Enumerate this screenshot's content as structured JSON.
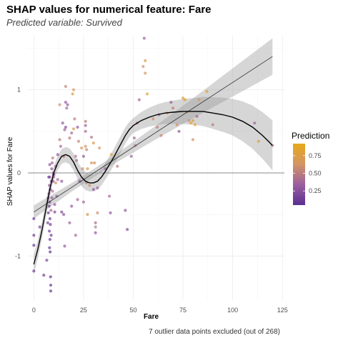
{
  "title": "SHAP values for numerical feature: Fare",
  "subtitle": "Predicted variable: Survived",
  "caption": "7 outlier data points excluded (out of 268)",
  "chart_data": {
    "type": "scatter",
    "xlabel": "Fare",
    "ylabel": "SHAP values for Fare",
    "xlim": [
      -3,
      126
    ],
    "ylim": [
      -1.53,
      1.65
    ],
    "x_ticks": [
      0,
      25,
      50,
      75,
      100,
      125
    ],
    "y_ticks": [
      -1,
      0,
      1
    ],
    "grid": true,
    "reference_line_y": 0,
    "legend": {
      "title": "Prediction",
      "placement": "right",
      "ticks": [
        0.25,
        0.5,
        0.75
      ],
      "range": [
        0.05,
        0.92
      ],
      "colors": [
        "#5b2f91",
        "#9a5fa0",
        "#d49563",
        "#e8a81b"
      ]
    },
    "colors": {
      "smooth_line": "#000000",
      "linear_fit": "#333333",
      "ribbon": "#999999",
      "reference_line": "#888888"
    },
    "points": [
      {
        "x": 0,
        "y": -0.55,
        "c": 0.12
      },
      {
        "x": 0,
        "y": -0.75,
        "c": 0.15
      },
      {
        "x": 0,
        "y": -0.87,
        "c": 0.1
      },
      {
        "x": 0,
        "y": -1.18,
        "c": 0.12
      },
      {
        "x": 3,
        "y": -0.65,
        "c": 0.2
      },
      {
        "x": 5,
        "y": -1.23,
        "c": 0.15
      },
      {
        "x": 6.5,
        "y": -1.05,
        "c": 0.2
      },
      {
        "x": 7,
        "y": -0.6,
        "c": 0.2
      },
      {
        "x": 7.2,
        "y": -0.3,
        "c": 0.3
      },
      {
        "x": 7.3,
        "y": -0.48,
        "c": 0.15
      },
      {
        "x": 7.5,
        "y": -0.05,
        "c": 0.2
      },
      {
        "x": 7.6,
        "y": -0.25,
        "c": 0.35
      },
      {
        "x": 7.7,
        "y": -0.4,
        "c": 0.15
      },
      {
        "x": 7.8,
        "y": -0.15,
        "c": 0.3
      },
      {
        "x": 7.8,
        "y": -0.7,
        "c": 0.15
      },
      {
        "x": 7.9,
        "y": -0.9,
        "c": 0.12
      },
      {
        "x": 7.9,
        "y": -0.05,
        "c": 0.2
      },
      {
        "x": 8,
        "y": 0.1,
        "c": 0.3
      },
      {
        "x": 8,
        "y": -0.35,
        "c": 0.2
      },
      {
        "x": 8.1,
        "y": -0.55,
        "c": 0.15
      },
      {
        "x": 8.1,
        "y": -0.8,
        "c": 0.12
      },
      {
        "x": 8.2,
        "y": -0.95,
        "c": 0.1
      },
      {
        "x": 8.3,
        "y": -0.62,
        "c": 0.14
      },
      {
        "x": 8.3,
        "y": -0.2,
        "c": 0.2
      },
      {
        "x": 8.4,
        "y": -1.25,
        "c": 0.1
      },
      {
        "x": 8.5,
        "y": -1.35,
        "c": 0.1
      },
      {
        "x": 8.5,
        "y": -1.42,
        "c": 0.12
      },
      {
        "x": 8.6,
        "y": -0.45,
        "c": 0.4
      },
      {
        "x": 8.7,
        "y": -0.75,
        "c": 0.15
      },
      {
        "x": 8.8,
        "y": -0.1,
        "c": 0.25
      },
      {
        "x": 9,
        "y": 0.05,
        "c": 0.3
      },
      {
        "x": 9.1,
        "y": -0.3,
        "c": 0.35
      },
      {
        "x": 9.2,
        "y": 0.12,
        "c": 0.35
      },
      {
        "x": 9.4,
        "y": -0.22,
        "c": 0.45
      },
      {
        "x": 9.5,
        "y": 0.18,
        "c": 0.5
      },
      {
        "x": 9.7,
        "y": -0.1,
        "c": 0.3
      },
      {
        "x": 9.8,
        "y": 0.0,
        "c": 0.4
      },
      {
        "x": 10,
        "y": -0.02,
        "c": 0.2
      },
      {
        "x": 10,
        "y": -0.05,
        "c": 0.4
      },
      {
        "x": 10.5,
        "y": -0.38,
        "c": 0.3
      },
      {
        "x": 10.5,
        "y": -0.47,
        "c": 0.2
      },
      {
        "x": 11,
        "y": 0.08,
        "c": 0.35
      },
      {
        "x": 11,
        "y": -0.12,
        "c": 0.6
      },
      {
        "x": 11.5,
        "y": -0.28,
        "c": 0.3
      },
      {
        "x": 12,
        "y": -0.08,
        "c": 0.4
      },
      {
        "x": 12,
        "y": 0.22,
        "c": 0.3
      },
      {
        "x": 13,
        "y": 0.4,
        "c": 0.5
      },
      {
        "x": 13,
        "y": 0.82,
        "c": 0.6
      },
      {
        "x": 13.5,
        "y": 0.32,
        "c": 0.4
      },
      {
        "x": 14,
        "y": -0.1,
        "c": 0.3
      },
      {
        "x": 14,
        "y": -0.47,
        "c": 0.2
      },
      {
        "x": 14.5,
        "y": 0.6,
        "c": 0.3
      },
      {
        "x": 15,
        "y": 0.2,
        "c": 0.5
      },
      {
        "x": 15,
        "y": -0.5,
        "c": 0.3
      },
      {
        "x": 15.5,
        "y": -0.88,
        "c": 0.3
      },
      {
        "x": 15.5,
        "y": 0.52,
        "c": 0.35
      },
      {
        "x": 16,
        "y": 0.85,
        "c": 0.3
      },
      {
        "x": 16,
        "y": 0.55,
        "c": 0.25
      },
      {
        "x": 16,
        "y": 1.04,
        "c": 0.55
      },
      {
        "x": 16.5,
        "y": 0.78,
        "c": 0.4
      },
      {
        "x": 17,
        "y": 0.82,
        "c": 0.3
      },
      {
        "x": 18,
        "y": -0.6,
        "c": 0.35
      },
      {
        "x": 18,
        "y": 0.42,
        "c": 0.5
      },
      {
        "x": 19,
        "y": -0.4,
        "c": 0.3
      },
      {
        "x": 19,
        "y": 0.48,
        "c": 0.4
      },
      {
        "x": 19.5,
        "y": 0.95,
        "c": 0.75
      },
      {
        "x": 20,
        "y": 1.0,
        "c": 0.65
      },
      {
        "x": 20,
        "y": 0.53,
        "c": 0.7
      },
      {
        "x": 20.5,
        "y": 0.65,
        "c": 0.5
      },
      {
        "x": 21,
        "y": 0.2,
        "c": 0.45
      },
      {
        "x": 21,
        "y": -0.75,
        "c": 0.4
      },
      {
        "x": 21.5,
        "y": 0.15,
        "c": 0.4
      },
      {
        "x": 22,
        "y": 0.55,
        "c": 0.3
      },
      {
        "x": 22,
        "y": -0.32,
        "c": 0.4
      },
      {
        "x": 22.5,
        "y": 0.38,
        "c": 0.55
      },
      {
        "x": 23,
        "y": -0.1,
        "c": 0.3
      },
      {
        "x": 24,
        "y": 0.3,
        "c": 0.7
      },
      {
        "x": 24.5,
        "y": 0.05,
        "c": 0.6
      },
      {
        "x": 25,
        "y": 0.2,
        "c": 0.3
      },
      {
        "x": 25,
        "y": -0.35,
        "c": 0.4
      },
      {
        "x": 26,
        "y": 0.62,
        "c": 0.5
      },
      {
        "x": 26,
        "y": 0.57,
        "c": 0.35
      },
      {
        "x": 26,
        "y": 0.5,
        "c": 0.4
      },
      {
        "x": 26,
        "y": 0.32,
        "c": 0.65
      },
      {
        "x": 26.5,
        "y": 0.28,
        "c": 0.55
      },
      {
        "x": 26.5,
        "y": -0.12,
        "c": 0.5
      },
      {
        "x": 27,
        "y": 0.05,
        "c": 0.7
      },
      {
        "x": 27,
        "y": -0.5,
        "c": 0.7
      },
      {
        "x": 28,
        "y": -0.15,
        "c": 0.6
      },
      {
        "x": 29,
        "y": 0.43,
        "c": 0.45
      },
      {
        "x": 29,
        "y": 0.12,
        "c": 0.7
      },
      {
        "x": 30,
        "y": 0.36,
        "c": 0.7
      },
      {
        "x": 30,
        "y": -0.2,
        "c": 0.3
      },
      {
        "x": 30.5,
        "y": 0.12,
        "c": 0.6
      },
      {
        "x": 31,
        "y": -0.65,
        "c": 0.5
      },
      {
        "x": 31,
        "y": -0.6,
        "c": 0.4
      },
      {
        "x": 31,
        "y": -0.72,
        "c": 0.3
      },
      {
        "x": 32,
        "y": -0.18,
        "c": 0.35
      },
      {
        "x": 32,
        "y": -0.48,
        "c": 0.6
      },
      {
        "x": 33,
        "y": 0.3,
        "c": 0.65
      },
      {
        "x": 36,
        "y": 0.05,
        "c": 0.35
      },
      {
        "x": 38,
        "y": -0.28,
        "c": 0.4
      },
      {
        "x": 38.5,
        "y": -0.48,
        "c": 0.3
      },
      {
        "x": 39,
        "y": 0.22,
        "c": 0.8
      },
      {
        "x": 42,
        "y": 0.08,
        "c": 0.5
      },
      {
        "x": 46,
        "y": -0.45,
        "c": 0.3
      },
      {
        "x": 47,
        "y": -0.68,
        "c": 0.25
      },
      {
        "x": 49,
        "y": 0.2,
        "c": 0.35
      },
      {
        "x": 50.5,
        "y": 0.42,
        "c": 0.4
      },
      {
        "x": 51,
        "y": 0.33,
        "c": 0.5
      },
      {
        "x": 52,
        "y": 0.6,
        "c": 0.45
      },
      {
        "x": 53,
        "y": 0.88,
        "c": 0.4
      },
      {
        "x": 55,
        "y": 1.28,
        "c": 0.6
      },
      {
        "x": 55.5,
        "y": 1.62,
        "c": 0.35
      },
      {
        "x": 56,
        "y": 1.35,
        "c": 0.7
      },
      {
        "x": 56,
        "y": 1.2,
        "c": 0.65
      },
      {
        "x": 57,
        "y": 0.95,
        "c": 0.8
      },
      {
        "x": 60,
        "y": 0.65,
        "c": 0.6
      },
      {
        "x": 62,
        "y": 0.55,
        "c": 0.5
      },
      {
        "x": 63,
        "y": 0.7,
        "c": 0.4
      },
      {
        "x": 64,
        "y": 0.45,
        "c": 0.55
      },
      {
        "x": 67,
        "y": 0.72,
        "c": 0.7
      },
      {
        "x": 69,
        "y": 0.85,
        "c": 0.35
      },
      {
        "x": 70,
        "y": 0.78,
        "c": 0.5
      },
      {
        "x": 72,
        "y": 0.58,
        "c": 0.6
      },
      {
        "x": 73,
        "y": 0.5,
        "c": 0.3
      },
      {
        "x": 75,
        "y": 0.9,
        "c": 0.75
      },
      {
        "x": 76,
        "y": 0.88,
        "c": 0.85
      },
      {
        "x": 77,
        "y": 0.73,
        "c": 0.75
      },
      {
        "x": 78,
        "y": 0.63,
        "c": 0.6
      },
      {
        "x": 79,
        "y": 0.6,
        "c": 0.85
      },
      {
        "x": 80,
        "y": 0.63,
        "c": 0.75
      },
      {
        "x": 80,
        "y": 0.4,
        "c": 0.6
      },
      {
        "x": 81,
        "y": 0.58,
        "c": 0.85
      },
      {
        "x": 82,
        "y": 0.68,
        "c": 0.4
      },
      {
        "x": 83,
        "y": 0.88,
        "c": 0.7
      },
      {
        "x": 87,
        "y": 0.98,
        "c": 0.8
      },
      {
        "x": 90,
        "y": 0.58,
        "c": 0.5
      },
      {
        "x": 111,
        "y": 0.6,
        "c": 0.35
      },
      {
        "x": 113,
        "y": 0.38,
        "c": 0.8
      },
      {
        "x": 120,
        "y": 0.33,
        "c": 0.5
      }
    ],
    "smooth_curve": [
      [
        0,
        -1.1
      ],
      [
        2,
        -0.92
      ],
      [
        4,
        -0.7
      ],
      [
        6,
        -0.45
      ],
      [
        8,
        -0.2
      ],
      [
        10,
        0.0
      ],
      [
        12,
        0.12
      ],
      [
        14,
        0.2
      ],
      [
        16,
        0.22
      ],
      [
        18,
        0.2
      ],
      [
        20,
        0.13
      ],
      [
        22,
        0.03
      ],
      [
        24,
        -0.05
      ],
      [
        26,
        -0.1
      ],
      [
        28,
        -0.12
      ],
      [
        30,
        -0.12
      ],
      [
        32,
        -0.1
      ],
      [
        34,
        -0.05
      ],
      [
        36,
        0.02
      ],
      [
        38,
        0.1
      ],
      [
        40,
        0.18
      ],
      [
        42,
        0.27
      ],
      [
        44,
        0.36
      ],
      [
        46,
        0.45
      ],
      [
        48,
        0.52
      ],
      [
        50,
        0.57
      ],
      [
        54,
        0.63
      ],
      [
        58,
        0.67
      ],
      [
        62,
        0.7
      ],
      [
        66,
        0.72
      ],
      [
        70,
        0.73
      ],
      [
        75,
        0.74
      ],
      [
        80,
        0.74
      ],
      [
        85,
        0.74
      ],
      [
        90,
        0.72
      ],
      [
        95,
        0.7
      ],
      [
        100,
        0.67
      ],
      [
        105,
        0.62
      ],
      [
        110,
        0.55
      ],
      [
        115,
        0.45
      ],
      [
        118,
        0.38
      ],
      [
        120,
        0.33
      ]
    ],
    "smooth_ci_width": [
      [
        0,
        0.12
      ],
      [
        5,
        0.1
      ],
      [
        10,
        0.08
      ],
      [
        15,
        0.09
      ],
      [
        20,
        0.1
      ],
      [
        25,
        0.11
      ],
      [
        30,
        0.1
      ],
      [
        35,
        0.1
      ],
      [
        40,
        0.1
      ],
      [
        45,
        0.1
      ],
      [
        50,
        0.09
      ],
      [
        60,
        0.12
      ],
      [
        70,
        0.14
      ],
      [
        80,
        0.16
      ],
      [
        90,
        0.19
      ],
      [
        100,
        0.22
      ],
      [
        110,
        0.26
      ],
      [
        120,
        0.3
      ]
    ],
    "linear_fit": {
      "x": [
        0,
        120
      ],
      "y": [
        -0.47,
        1.4
      ]
    },
    "linear_ci_width": [
      [
        0,
        0.08
      ],
      [
        20,
        0.05
      ],
      [
        40,
        0.05
      ],
      [
        60,
        0.08
      ],
      [
        80,
        0.12
      ],
      [
        100,
        0.17
      ],
      [
        120,
        0.22
      ]
    ]
  }
}
